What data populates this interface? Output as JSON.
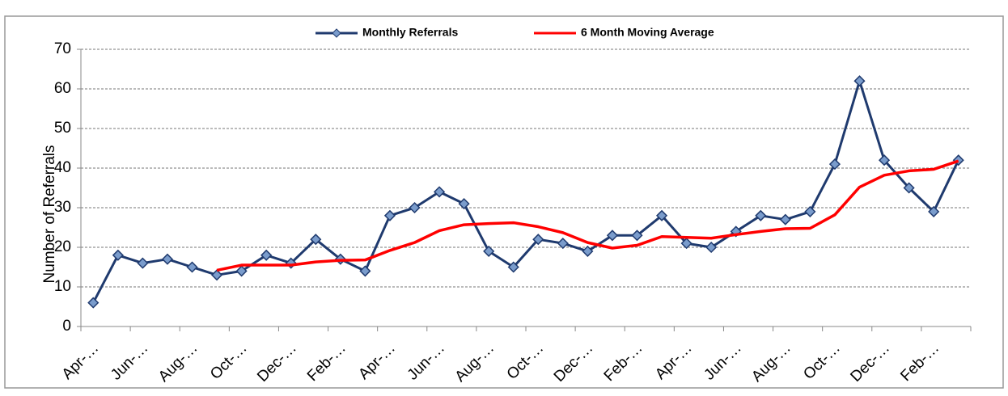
{
  "chart_data": {
    "type": "line",
    "ylabel": "Number of Referrals",
    "categories": [
      "Apr-…",
      null,
      "Jun-…",
      null,
      "Aug-…",
      null,
      "Oct-…",
      null,
      "Dec-…",
      null,
      "Feb-…",
      null,
      "Apr-…",
      null,
      "Jun-…",
      null,
      "Aug-…",
      null,
      "Oct-…",
      null,
      "Dec-…",
      null,
      "Feb-…",
      null,
      "Apr-…",
      null,
      "Jun-…",
      null,
      "Aug-…",
      null,
      "Oct-…",
      null,
      "Dec-…",
      null,
      "Feb-…",
      null
    ],
    "series": [
      {
        "name": "Monthly Referrals",
        "color": "#1f3a6e",
        "marker": true,
        "values": [
          6,
          18,
          16,
          17,
          15,
          13,
          14,
          18,
          16,
          22,
          17,
          14,
          28,
          30,
          34,
          31,
          19,
          15,
          22,
          21,
          19,
          23,
          23,
          28,
          21,
          20,
          24,
          28,
          27,
          29,
          41,
          62,
          42,
          35,
          29,
          42
        ]
      },
      {
        "name": "6 Month Moving Average",
        "color": "#ff0000",
        "marker": false,
        "values": [
          null,
          null,
          null,
          null,
          null,
          14.2,
          15.5,
          15.5,
          15.5,
          16.3,
          16.7,
          16.8,
          19.2,
          21.2,
          24.2,
          25.7,
          26,
          26.2,
          25.2,
          23.7,
          21.2,
          19.8,
          20.5,
          22.7,
          22.5,
          22.3,
          23.2,
          24,
          24.7,
          24.8,
          28.2,
          35.2,
          38.2,
          39.3,
          39.7,
          41.8
        ]
      }
    ],
    "ylim": [
      0,
      70
    ],
    "yticks": [
      0,
      10,
      20,
      30,
      40,
      50,
      60,
      70
    ],
    "grid": true,
    "legend": "top"
  }
}
